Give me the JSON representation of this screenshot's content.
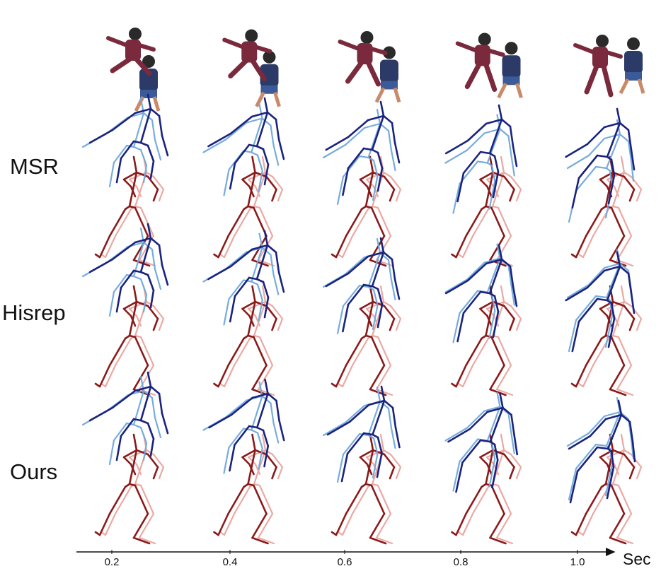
{
  "rows": [
    {
      "label": "MSR"
    },
    {
      "label": "Hisrep"
    },
    {
      "label": "Ours"
    }
  ],
  "time_axis": {
    "ticks": [
      "0.2",
      "0.4",
      "0.6",
      "0.8",
      "1.0"
    ],
    "unit": "Sec"
  },
  "colors": {
    "blue_prediction": "#1a237e",
    "blue_ground_truth": "#6fa8dc",
    "red_prediction": "#8b1a1a",
    "red_ground_truth": "#e8a09a",
    "shirt_maroon": "#7a2a3c",
    "shirt_navy": "#2b3a67",
    "skin": "#c98a6a",
    "hair": "#2a2a2a"
  },
  "icons": [
    "photo-person-pair",
    "skeleton-pair"
  ]
}
